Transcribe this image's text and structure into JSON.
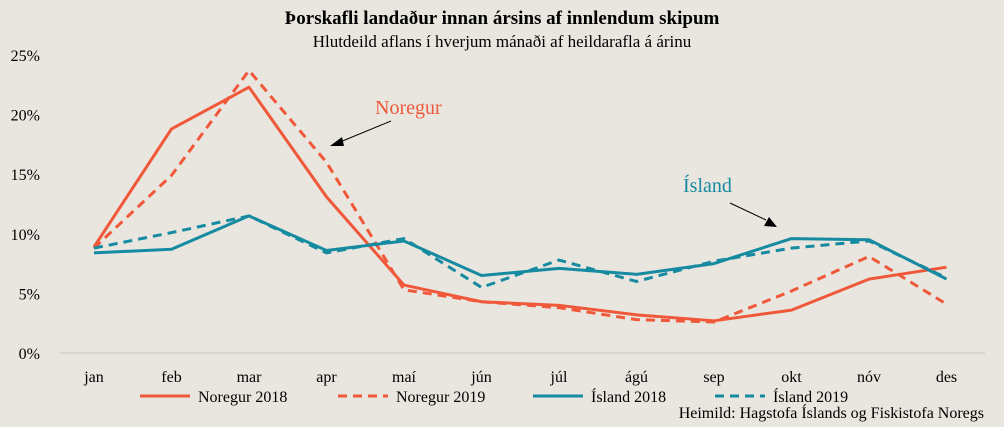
{
  "chart_data": {
    "type": "line",
    "title": "Þorskafli landaður innan ársins af innlendum skipum",
    "subtitle": "Hlutdeild aflans í hverjum mánaði af heildarafla á árinu",
    "categories": [
      "jan",
      "feb",
      "mar",
      "apr",
      "maí",
      "jún",
      "júl",
      "ágú",
      "sep",
      "okt",
      "nóv",
      "des"
    ],
    "yticks": [
      "0%",
      "5%",
      "10%",
      "15%",
      "20%",
      "25%"
    ],
    "ytick_values": [
      0,
      5,
      10,
      15,
      20,
      25
    ],
    "ylim": [
      0,
      25
    ],
    "grid": false,
    "legend_position": "bottom",
    "series": [
      {
        "name": "Noregur 2018",
        "color": "#f0583a",
        "dashed": false,
        "values": [
          8.9,
          18.8,
          22.3,
          13.1,
          5.7,
          4.3,
          4.0,
          3.2,
          2.7,
          3.6,
          6.2,
          7.2
        ]
      },
      {
        "name": "Noregur 2019",
        "color": "#f0583a",
        "dashed": true,
        "values": [
          8.8,
          14.9,
          23.7,
          16.0,
          5.3,
          4.3,
          3.8,
          2.8,
          2.6,
          5.2,
          8.1,
          4.1
        ]
      },
      {
        "name": "Ísland 2018",
        "color": "#168aa0",
        "dashed": false,
        "values": [
          8.4,
          8.7,
          11.5,
          8.6,
          9.4,
          6.5,
          7.1,
          6.6,
          7.5,
          9.6,
          9.5,
          6.2
        ]
      },
      {
        "name": "Ísland 2019",
        "color": "#168aa0",
        "dashed": true,
        "values": [
          8.8,
          10.1,
          11.5,
          8.4,
          9.6,
          5.5,
          7.8,
          6.0,
          7.7,
          8.8,
          9.4,
          6.3
        ]
      }
    ],
    "annotations": [
      {
        "text": "Noregur",
        "color": "#f0583a"
      },
      {
        "text": "Ísland",
        "color": "#168aa0"
      }
    ],
    "source": "Heimild:  Hagstofa Íslands og Fiskistofa Noregs"
  }
}
